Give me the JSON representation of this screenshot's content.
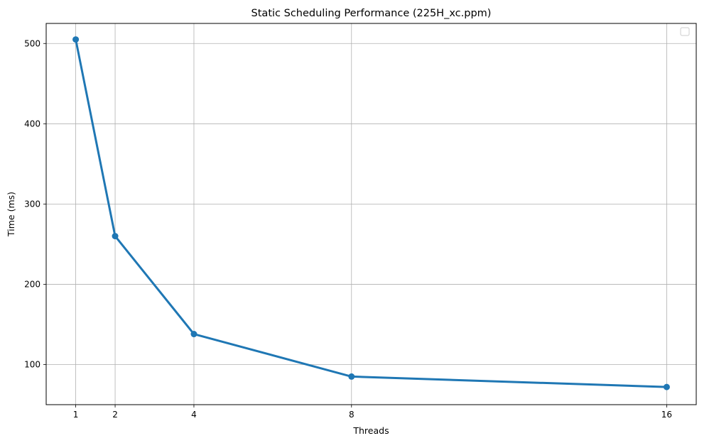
{
  "chart_data": {
    "type": "line",
    "title": "Static Scheduling Performance (225H_xc.ppm)",
    "xlabel": "Threads",
    "ylabel": "Time (ms)",
    "x": [
      1,
      2,
      4,
      8,
      16
    ],
    "xticks": [
      "1",
      "2",
      "4",
      "8",
      "16"
    ],
    "xlim": [
      0.25,
      16.75
    ],
    "yticks": [
      "100",
      "200",
      "300",
      "400",
      "500"
    ],
    "ylim": [
      50,
      525
    ],
    "grid": true,
    "legend": "top-right",
    "series": [
      {
        "values": [
          505,
          260,
          138,
          85,
          72
        ],
        "color": "#1f77b4",
        "marker": "circle"
      }
    ]
  }
}
